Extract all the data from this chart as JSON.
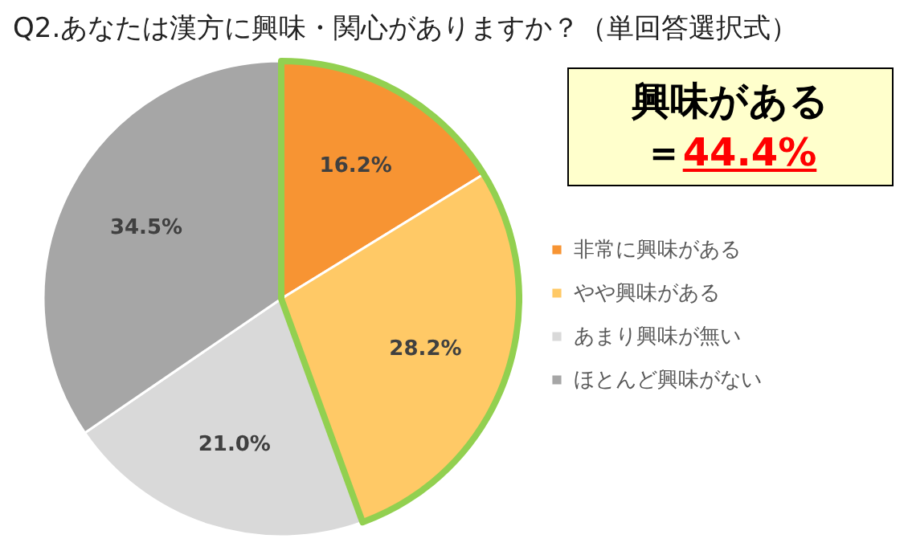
{
  "chart_data": {
    "type": "pie",
    "title": "Q2.あなたは漢方に興味・関心がありますか？（単回答選択式）",
    "categories": [
      "非常に興味がある",
      "やや興味がある",
      "あまり興味が無い",
      "ほとんど興味がない"
    ],
    "values": [
      16.2,
      28.2,
      21.0,
      34.5
    ],
    "colors": [
      "#f79433",
      "#ffc966",
      "#d9d9d9",
      "#a6a6a6"
    ],
    "value_labels": [
      "16.2%",
      "28.2%",
      "21.0%",
      "34.5%"
    ],
    "legend": "right",
    "annotations": [
      "興味がある",
      "＝",
      "44.4%"
    ]
  }
}
